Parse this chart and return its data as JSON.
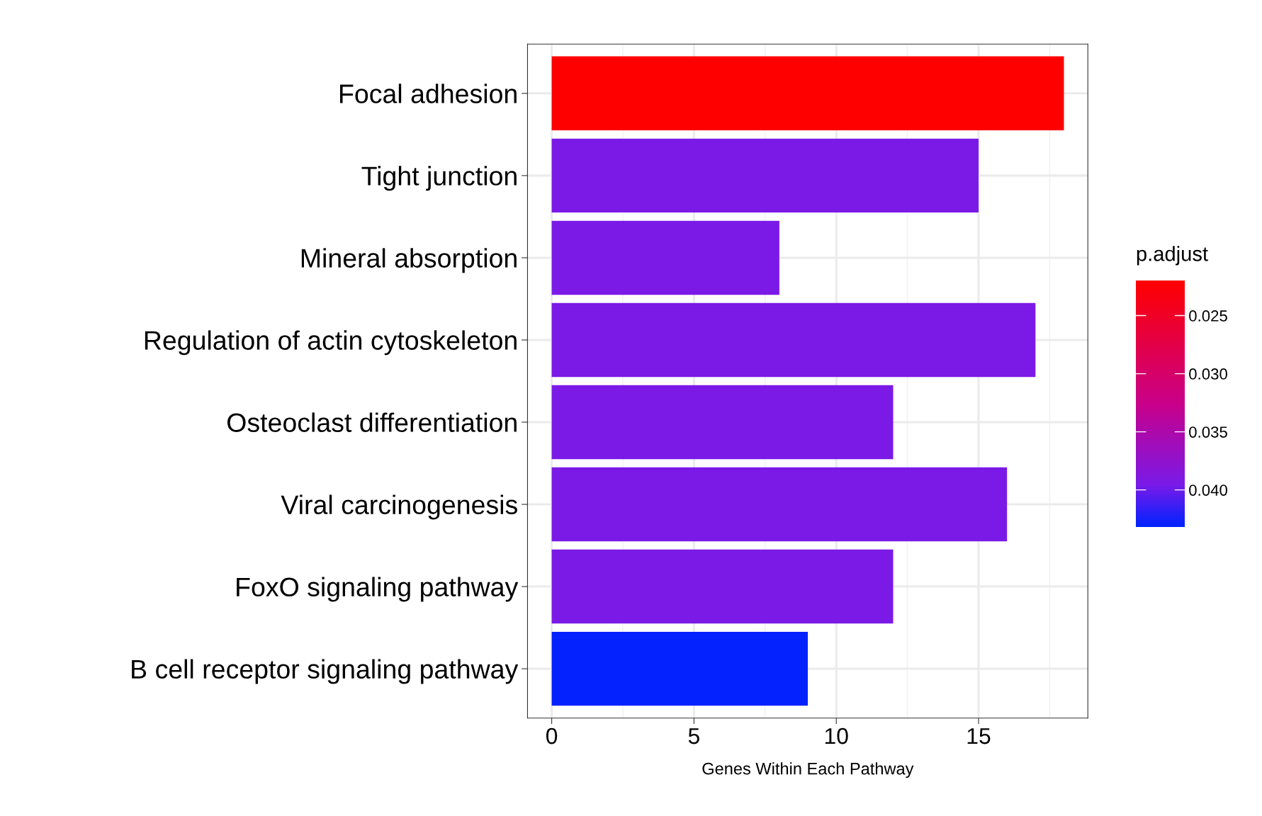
{
  "chart_data": {
    "type": "bar",
    "orientation": "horizontal",
    "xlabel": "Genes Within Each Pathway",
    "clabel": "p.adjust",
    "categories": [
      "Focal adhesion",
      "Tight junction",
      "Mineral absorption",
      "Regulation of actin cytoskeleton",
      "Osteoclast differentiation",
      "Viral carcinogenesis",
      "FoxO signaling pathway",
      "B cell receptor signaling pathway"
    ],
    "values": [
      18,
      15,
      8,
      17,
      12,
      16,
      12,
      9
    ],
    "cvalues": [
      0.022,
      0.0395,
      0.0395,
      0.0395,
      0.0395,
      0.0395,
      0.0395,
      0.0431
    ],
    "clim": [
      0.022,
      0.0432
    ],
    "cticks": [
      0.025,
      {
        "value": 0.03,
        "label": "0.030"
      },
      0.035,
      {
        "value": 0.04,
        "label": "0.040"
      }
    ],
    "xlim": [
      -0.85,
      18.84
    ],
    "xticks": [
      0,
      5,
      10,
      15
    ],
    "grid": true,
    "legend": false
  }
}
